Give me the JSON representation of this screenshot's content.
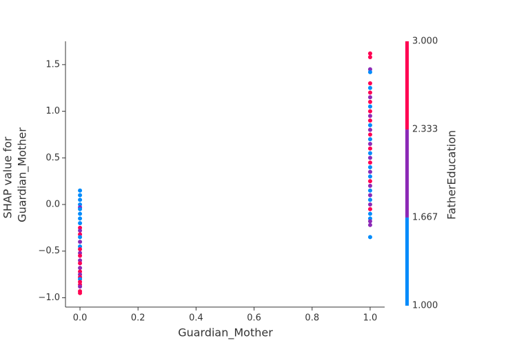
{
  "chart_data": {
    "type": "scatter",
    "xlabel": "Guardian_Mother",
    "ylabel": [
      "SHAP value for",
      "Guardian_Mother"
    ],
    "xlim": [
      -0.05,
      1.05
    ],
    "ylim": [
      -1.1,
      1.75
    ],
    "xticks": [
      {
        "value": 0,
        "label": "0.0"
      },
      {
        "value": 0.2,
        "label": "0.2"
      },
      {
        "value": 0.4,
        "label": "0.4"
      },
      {
        "value": 0.6,
        "label": "0.6"
      },
      {
        "value": 0.8,
        "label": "0.8"
      },
      {
        "value": 1,
        "label": "1.0"
      }
    ],
    "yticks": [
      {
        "value": -1,
        "label": "−1.0"
      },
      {
        "value": -0.5,
        "label": "−0.5"
      },
      {
        "value": 0,
        "label": "0.0"
      },
      {
        "value": 0.5,
        "label": "0.5"
      },
      {
        "value": 1,
        "label": "1.0"
      },
      {
        "value": 1.5,
        "label": "1.5"
      }
    ],
    "colorbar": {
      "label": "FatherEducation",
      "lim": [
        1,
        3
      ],
      "ticks": [
        {
          "value": 1,
          "label": "1.000"
        },
        {
          "value": 1.667,
          "label": "1.667"
        },
        {
          "value": 2.333,
          "label": "2.333"
        },
        {
          "value": 3,
          "label": "3.000"
        }
      ],
      "colors": [
        "#008bfb",
        "#8c2ab6",
        "#ff0052"
      ]
    },
    "series": [
      {
        "x": [
          0,
          0,
          0,
          0,
          0,
          0,
          0,
          0,
          0,
          0,
          0,
          0,
          0,
          0,
          0,
          0,
          0,
          0,
          0,
          0,
          0,
          0,
          0,
          0,
          0,
          0,
          0,
          0,
          0,
          0,
          1,
          1,
          1,
          1,
          1,
          1,
          1,
          1,
          1,
          1,
          1,
          1,
          1,
          1,
          1,
          1,
          1,
          1,
          1,
          1,
          1,
          1,
          1,
          1,
          1,
          1,
          1,
          1,
          1,
          1,
          1,
          1,
          1,
          1,
          1,
          1,
          1
        ],
        "y": [
          0.15,
          0.1,
          0.05,
          0.0,
          -0.03,
          -0.05,
          -0.1,
          -0.15,
          -0.2,
          -0.25,
          -0.28,
          -0.32,
          -0.35,
          -0.4,
          -0.45,
          -0.48,
          -0.52,
          -0.55,
          -0.6,
          -0.63,
          -0.68,
          -0.72,
          -0.75,
          -0.78,
          -0.8,
          -0.83,
          -0.86,
          -0.88,
          -0.93,
          -0.95,
          1.62,
          1.58,
          1.45,
          1.42,
          1.3,
          1.25,
          1.2,
          1.15,
          1.1,
          1.05,
          1.0,
          0.95,
          0.9,
          0.85,
          0.8,
          0.75,
          0.7,
          0.65,
          0.6,
          0.55,
          0.5,
          0.45,
          0.4,
          0.35,
          0.3,
          0.25,
          0.2,
          0.15,
          0.1,
          0.05,
          0.0,
          -0.05,
          -0.1,
          -0.15,
          -0.18,
          -0.22,
          -0.35
        ],
        "c": [
          1,
          1,
          1,
          1,
          2,
          1,
          1,
          1,
          1,
          3,
          2,
          3,
          1,
          2,
          1,
          3,
          2,
          3,
          2,
          3,
          2,
          3,
          2,
          3,
          1,
          3,
          3,
          2,
          3,
          3,
          3,
          3,
          2,
          1,
          3,
          1,
          3,
          2,
          3,
          1,
          3,
          2,
          3,
          1,
          2,
          3,
          1,
          2,
          3,
          1,
          2,
          3,
          1,
          2,
          1,
          3,
          2,
          1,
          2,
          1,
          2,
          3,
          1,
          1,
          2,
          2,
          1
        ]
      }
    ]
  }
}
